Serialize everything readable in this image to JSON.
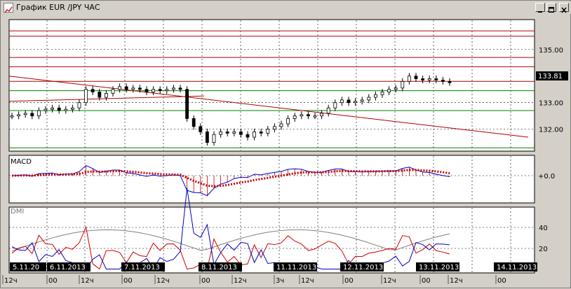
{
  "window": {
    "title": "График EUR /JPY ЧАС",
    "buttons": [
      "minimize",
      "maximize",
      "close"
    ]
  },
  "chart_data": {
    "type": "candlestick",
    "symbol": "EUR/JPY",
    "timeframe": "ЧАС",
    "price_axis": {
      "ticks": [
        135.0,
        133.0,
        132.0
      ],
      "ylim": [
        131.2,
        136.1
      ]
    },
    "current_price": "133.81",
    "close_prices": [
      132.5,
      132.55,
      132.6,
      132.5,
      132.7,
      132.75,
      132.8,
      132.7,
      132.75,
      132.8,
      133.0,
      133.5,
      133.4,
      133.2,
      133.35,
      133.5,
      133.6,
      133.5,
      133.55,
      133.5,
      133.4,
      133.5,
      133.45,
      133.5,
      133.55,
      133.5,
      132.4,
      132.1,
      131.9,
      131.5,
      131.8,
      131.9,
      131.85,
      131.9,
      131.8,
      131.7,
      131.9,
      131.85,
      132.0,
      132.1,
      132.2,
      132.4,
      132.5,
      132.55,
      132.5,
      132.5,
      132.6,
      132.8,
      133.0,
      133.1,
      133.0,
      133.05,
      133.1,
      133.2,
      133.3,
      133.4,
      133.5,
      133.55,
      133.8,
      134.0,
      133.9,
      133.85,
      133.9,
      133.85,
      133.8,
      133.75
    ],
    "horizontal_lines_red": [
      135.7,
      135.5,
      134.7,
      134.35,
      133.8
    ],
    "horizontal_lines_green": [
      133.45,
      132.7,
      131.3
    ],
    "trend_lines": [
      "descending-trendline",
      "rising-channel-line"
    ],
    "date_labels": [
      "5.11.20",
      "6.11.2013",
      "7.11.2013",
      "8.11.2013",
      "11.11.2013",
      "12.11.2013",
      "13.11.2013",
      "14.11.2013"
    ],
    "time_labels": [
      "12ч",
      "00",
      "12ч",
      "00",
      "12ч",
      "00",
      "12ч",
      "3ч",
      "12ч",
      "00",
      "12ч",
      "00",
      "12ч",
      "00"
    ],
    "indicators": [
      {
        "name": "MACD",
        "levels": [
          "+0.0"
        ]
      },
      {
        "name": "DMI",
        "levels": [
          40,
          20
        ]
      }
    ]
  }
}
